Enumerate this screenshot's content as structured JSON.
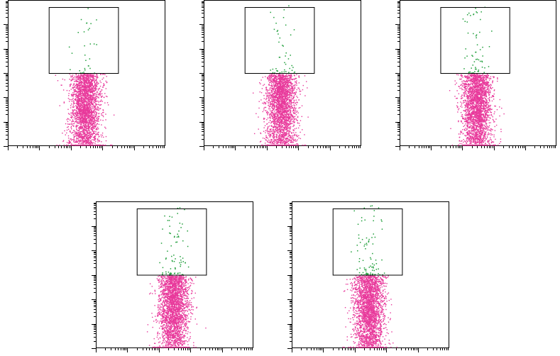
{
  "chart_data": [
    {
      "type": "scatter",
      "xscale": "log",
      "yscale": "log",
      "title": "",
      "xlabel": "",
      "ylabel": "",
      "grid": false,
      "legend": "none",
      "series": [
        {
          "color": "#e8399b",
          "points": 2400
        },
        {
          "color": "#1f9e3a",
          "points": 30
        }
      ],
      "gate": {
        "x": [
          1.3,
          3.5
        ],
        "y": [
          3.0,
          6.0
        ]
      }
    },
    {
      "type": "scatter",
      "xscale": "log",
      "yscale": "log",
      "title": "",
      "xlabel": "",
      "ylabel": "",
      "grid": false,
      "legend": "none",
      "series": [
        {
          "color": "#e8399b",
          "points": 2400
        },
        {
          "color": "#1f9e3a",
          "points": 45
        }
      ],
      "gate": {
        "x": [
          1.3,
          3.5
        ],
        "y": [
          3.0,
          6.0
        ]
      }
    },
    {
      "type": "scatter",
      "xscale": "log",
      "yscale": "log",
      "title": "",
      "xlabel": "",
      "ylabel": "",
      "grid": false,
      "legend": "none",
      "series": [
        {
          "color": "#e8399b",
          "points": 2400
        },
        {
          "color": "#1f9e3a",
          "points": 60
        }
      ],
      "gate": {
        "x": [
          1.3,
          3.5
        ],
        "y": [
          3.0,
          6.0
        ]
      }
    },
    {
      "type": "scatter",
      "xscale": "log",
      "yscale": "log",
      "title": "",
      "xlabel": "",
      "ylabel": "",
      "grid": false,
      "legend": "none",
      "series": [
        {
          "color": "#e8399b",
          "points": 2400
        },
        {
          "color": "#1f9e3a",
          "points": 75
        }
      ],
      "gate": {
        "x": [
          1.3,
          3.5
        ],
        "y": [
          3.0,
          6.0
        ]
      }
    },
    {
      "type": "scatter",
      "xscale": "log",
      "yscale": "log",
      "title": "",
      "xlabel": "",
      "ylabel": "",
      "grid": false,
      "legend": "none",
      "series": [
        {
          "color": "#e8399b",
          "points": 2400
        },
        {
          "color": "#1f9e3a",
          "points": 85
        }
      ],
      "gate": {
        "x": [
          1.3,
          3.5
        ],
        "y": [
          3.0,
          6.0
        ]
      }
    }
  ]
}
